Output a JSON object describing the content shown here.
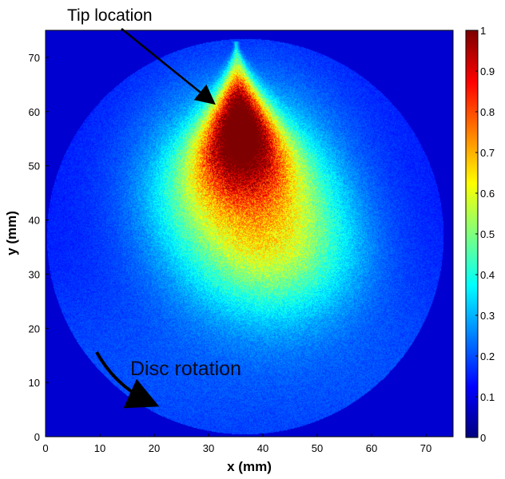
{
  "chart_data": {
    "type": "heatmap",
    "xlabel": "x (mm)",
    "ylabel": "y (mm)",
    "xlim": [
      0,
      75
    ],
    "ylim": [
      0,
      75
    ],
    "xticks": [
      "0",
      "10",
      "20",
      "30",
      "40",
      "50",
      "60",
      "70"
    ],
    "yticks": [
      "0",
      "10",
      "20",
      "30",
      "40",
      "50",
      "60",
      "70"
    ],
    "colorbar": {
      "range": [
        0,
        1
      ],
      "ticks": [
        "0",
        "0.1",
        "0.2",
        "0.3",
        "0.4",
        "0.5",
        "0.6",
        "0.7",
        "0.8",
        "0.9",
        "1"
      ],
      "colormap": "jet"
    },
    "disc": {
      "center": [
        36.7,
        37
      ],
      "radius": 36.5,
      "inside_level": 0.15,
      "outside_level": 0.08
    },
    "hotspot": {
      "peak": [
        35,
        58
      ],
      "peak_value": 1.0,
      "tip": [
        36,
        73
      ]
    },
    "annotations": [
      {
        "text": "Tip location",
        "arrow_to": [
          31,
          61
        ]
      },
      {
        "text": "Disc rotation",
        "arrow": "curved, pointing down-right near (19, 5)"
      }
    ]
  }
}
